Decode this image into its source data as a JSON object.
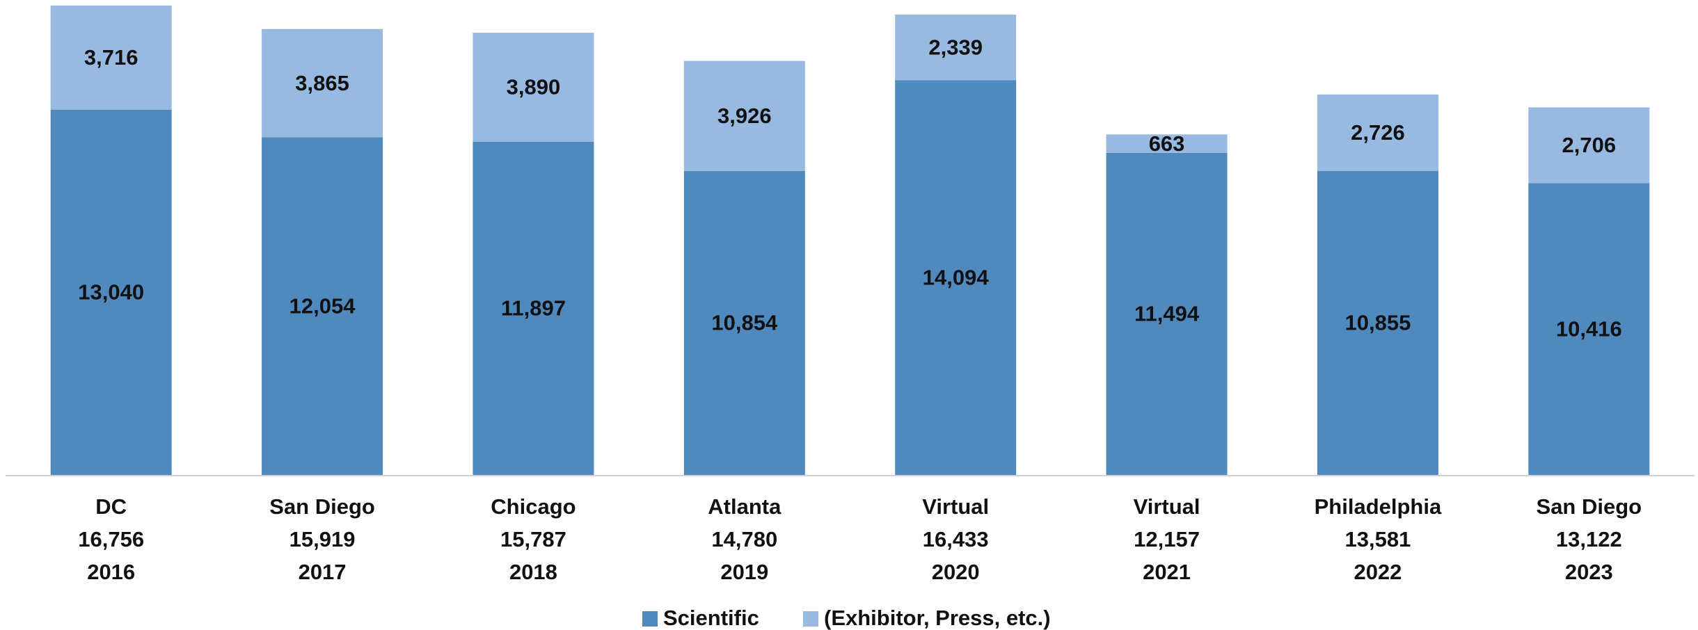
{
  "chart_data": {
    "type": "stacked_bar",
    "categories": [
      [
        "DC",
        "16,756",
        "2016"
      ],
      [
        "San Diego",
        "15,919",
        "2017"
      ],
      [
        "Chicago",
        "15,787",
        "2018"
      ],
      [
        "Atlanta",
        "14,780",
        "2019"
      ],
      [
        "Virtual",
        "16,433",
        "2020"
      ],
      [
        "Virtual",
        "12,157",
        "2021"
      ],
      [
        "Philadelphia",
        "13,581",
        "2022"
      ],
      [
        "San Diego",
        "13,122",
        "2023"
      ]
    ],
    "series": [
      {
        "name": "Scientific",
        "color": "#4f89bd",
        "values": [
          13040,
          12054,
          11897,
          10854,
          14094,
          11494,
          10855,
          10416
        ],
        "value_labels": [
          "13,040",
          "12,054",
          "11,897",
          "10,854",
          "14,094",
          "11,494",
          "10,855",
          "10,416"
        ]
      },
      {
        "name": "(Exhibitor, Press, etc.)",
        "color": "#98b9e0",
        "values": [
          3716,
          3865,
          3890,
          3926,
          2339,
          663,
          2726,
          2706
        ],
        "value_labels": [
          "3,716",
          "3,865",
          "3,890",
          "3,926",
          "2,339",
          "663",
          "2,726",
          "2,706"
        ]
      }
    ]
  }
}
